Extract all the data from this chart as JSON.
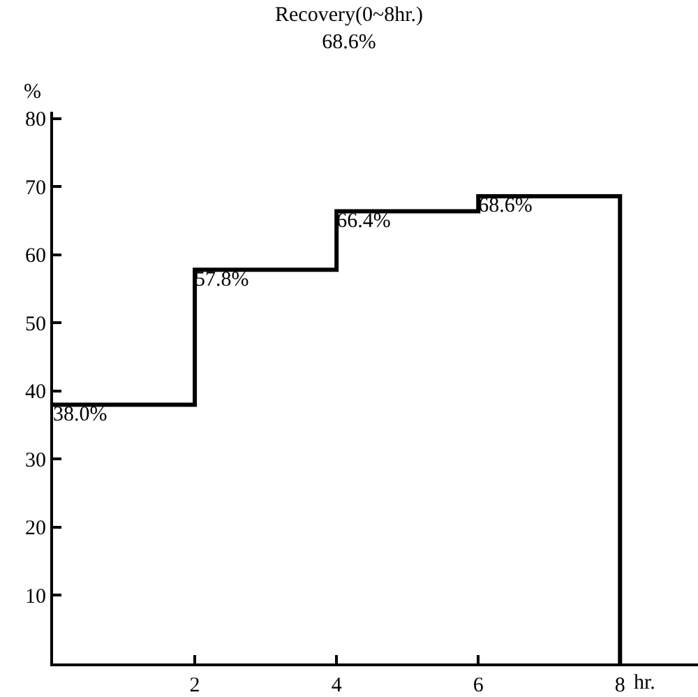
{
  "chart_data": {
    "type": "step",
    "title": "Recovery(0~8hr.)",
    "subtitle": "68.6%",
    "xlabel": "hr.",
    "ylabel": "%",
    "x": [
      0,
      2,
      4,
      6,
      8
    ],
    "series": [
      {
        "color": "#000000",
        "values": [
          38.0,
          57.8,
          66.4,
          68.6,
          0
        ],
        "value_labels": [
          "38.0%",
          "57.8%",
          "66.4%",
          "68.6%",
          null
        ]
      }
    ],
    "xlim": [
      0,
      9.1
    ],
    "xticks": [
      2,
      4,
      6,
      8
    ],
    "ylim": [
      0,
      81
    ],
    "yticks": [
      10,
      20,
      30,
      40,
      50,
      60,
      70,
      80
    ],
    "marker": "none",
    "line_style": "solid"
  }
}
